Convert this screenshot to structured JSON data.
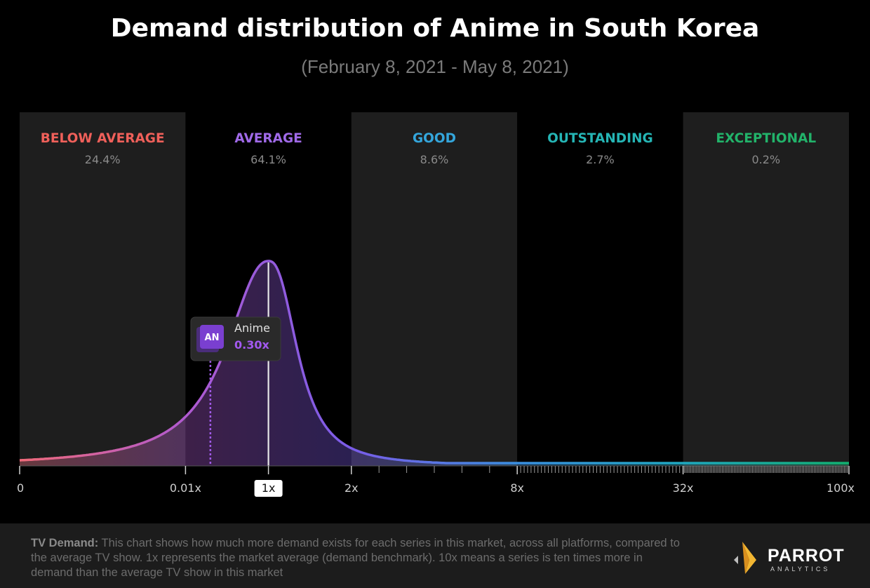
{
  "header": {
    "title": "Demand distribution of Anime in South Korea",
    "subtitle": "(February 8, 2021 - May 8, 2021)"
  },
  "chart_data": {
    "type": "area",
    "title": "Demand distribution of Anime in South Korea",
    "subtitle": "(February 8, 2021 - May 8, 2021)",
    "x_ticks": [
      "0",
      "0.01x",
      "1x",
      "2x",
      "8x",
      "32x",
      "100x"
    ],
    "highlighted_tick": "1x",
    "bands": [
      {
        "name": "BELOW AVERAGE",
        "share": "24.4%",
        "color": "#f0605a",
        "shaded": true
      },
      {
        "name": "AVERAGE",
        "share": "64.1%",
        "color": "#a06ae8",
        "shaded": false
      },
      {
        "name": "GOOD",
        "share": "8.6%",
        "color": "#34a6dc",
        "shaded": true
      },
      {
        "name": "OUTSTANDING",
        "share": "2.7%",
        "color": "#25b5b5",
        "shaded": false
      },
      {
        "name": "EXCEPTIONAL",
        "share": "0.2%",
        "color": "#22b36a",
        "shaded": true
      }
    ],
    "marker": {
      "code": "AN",
      "label": "Anime",
      "value": "0.30x",
      "color": "#a259f0"
    },
    "curve_colors": [
      "#f06a7a",
      "#b05ad0",
      "#7a5ce8",
      "#3a8fe0",
      "#1fa8c0",
      "#12b070"
    ],
    "grid": false,
    "legend": "none"
  },
  "footer": {
    "label": "TV Demand:",
    "text": " This chart shows how much more demand exists for each series in this market, across all platforms, compared to the average TV show. 1x represents the market average (demand benchmark). 10x means a series is ten times more in demand than the average TV show in this market"
  },
  "logo": {
    "word": "PARROT",
    "sub": "ANALYTICS",
    "icon": "parrot-logo-icon"
  }
}
